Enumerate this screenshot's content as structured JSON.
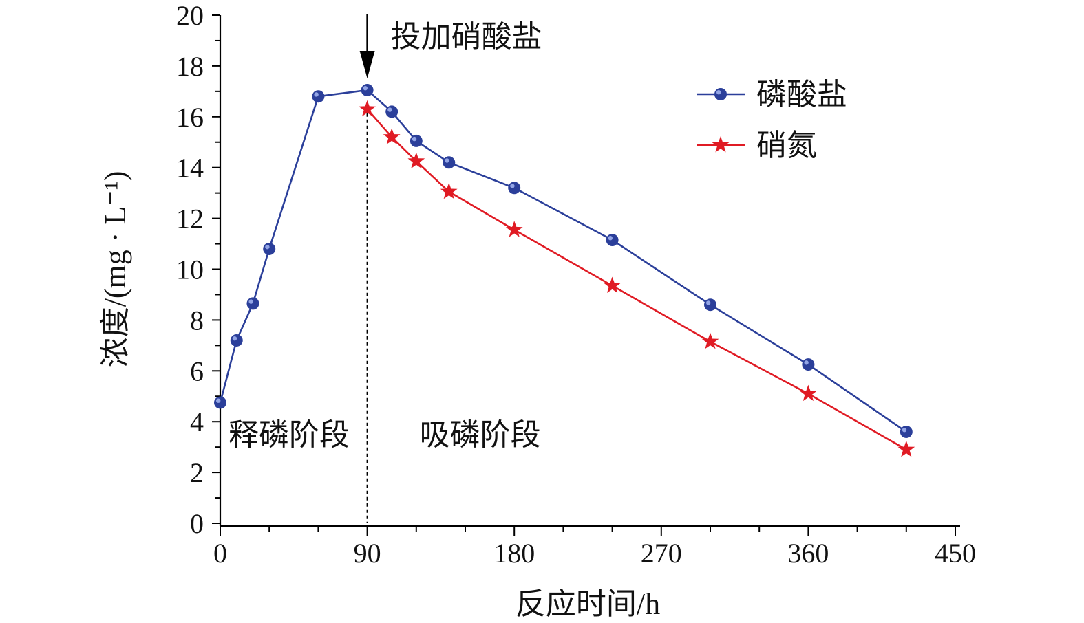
{
  "chart_data": {
    "type": "line",
    "xlabel": "反应时间/h",
    "ylabel": "浓度/(mg · L⁻¹)",
    "xlim": [
      0,
      450
    ],
    "ylim": [
      0,
      20
    ],
    "x_ticks": [
      0,
      90,
      180,
      270,
      360,
      450
    ],
    "y_ticks": [
      0,
      2,
      4,
      6,
      8,
      10,
      12,
      14,
      16,
      18,
      20
    ],
    "grid": false,
    "legend_position": "top-right",
    "series": [
      {
        "name": "磷酸盐",
        "color": "#2b3f9a",
        "marker": "circle",
        "x": [
          0,
          10,
          20,
          30,
          60,
          90,
          105,
          120,
          140,
          180,
          240,
          300,
          360,
          420
        ],
        "y": [
          4.75,
          7.2,
          8.65,
          10.8,
          16.8,
          17.05,
          16.2,
          15.05,
          14.2,
          13.2,
          11.15,
          8.6,
          6.25,
          3.6
        ]
      },
      {
        "name": "硝氮",
        "color": "#e01b24",
        "marker": "star",
        "x": [
          90,
          105,
          120,
          140,
          180,
          240,
          300,
          360,
          420
        ],
        "y": [
          16.3,
          15.2,
          14.25,
          13.05,
          11.55,
          9.35,
          7.15,
          5.1,
          2.9
        ]
      }
    ],
    "annotations": {
      "nitrate_addition": {
        "label": "投加硝酸盐",
        "x": 90
      },
      "release_phase": {
        "label": "释磷阶段"
      },
      "uptake_phase": {
        "label": "吸磷阶段"
      }
    }
  }
}
